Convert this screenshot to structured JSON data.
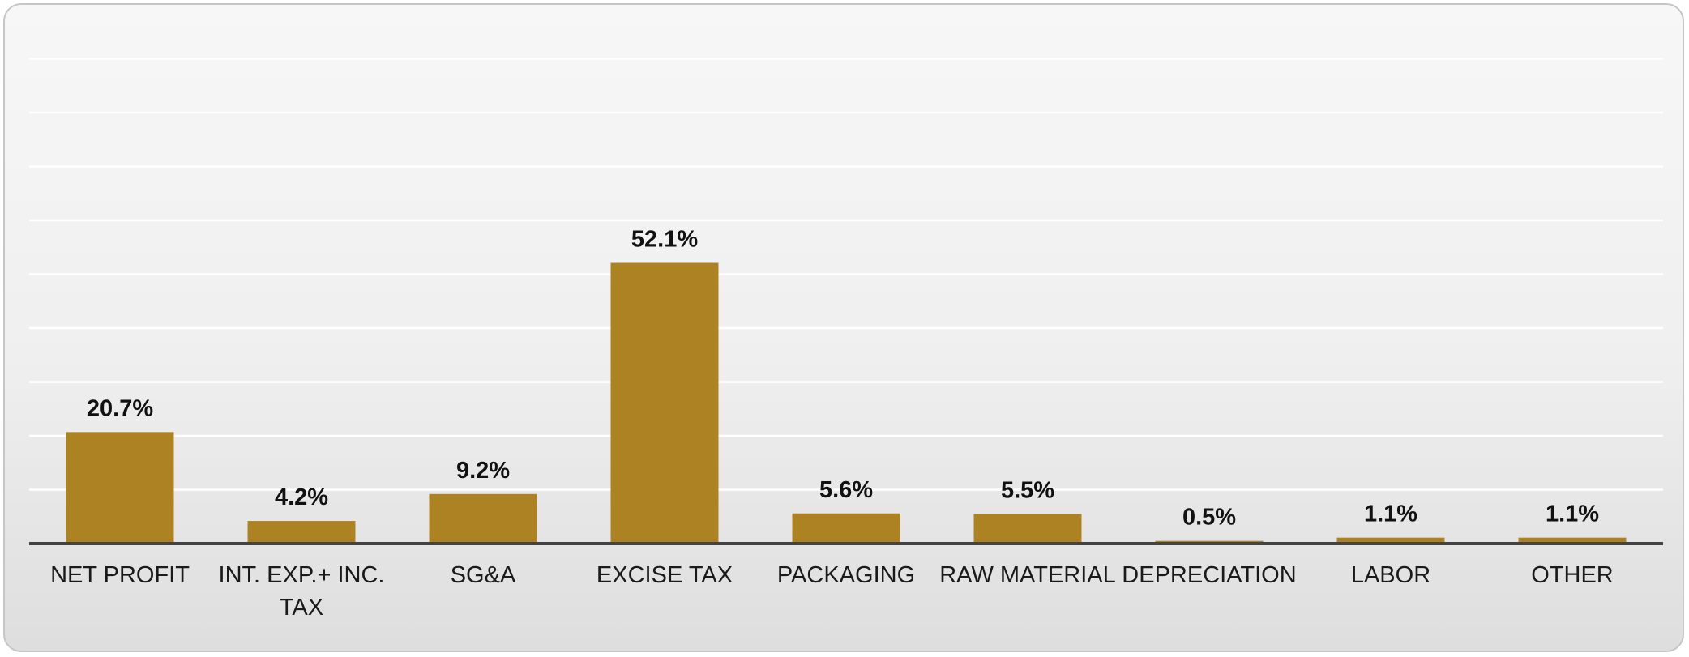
{
  "chart_data": {
    "type": "bar",
    "title": "",
    "xlabel": "",
    "ylabel": "",
    "categories": [
      "NET PROFIT",
      "INT. EXP.+ INC. TAX",
      "SG&A",
      "EXCISE TAX",
      "PACKAGING",
      "RAW MATERIAL",
      "DEPRECIATION",
      "LABOR",
      "OTHER"
    ],
    "values": [
      20.7,
      4.2,
      9.2,
      52.1,
      5.6,
      5.5,
      0.5,
      1.1,
      1.1
    ],
    "value_labels": [
      "20.7%",
      "4.2%",
      "9.2%",
      "52.1%",
      "5.6%",
      "5.5%",
      "0.5%",
      "1.1%",
      "1.1%"
    ],
    "ylim": [
      0,
      90
    ],
    "grid": true,
    "bar_color": "#ad8223",
    "gridline_color": "#ffffff",
    "axis_color": "#444444"
  }
}
